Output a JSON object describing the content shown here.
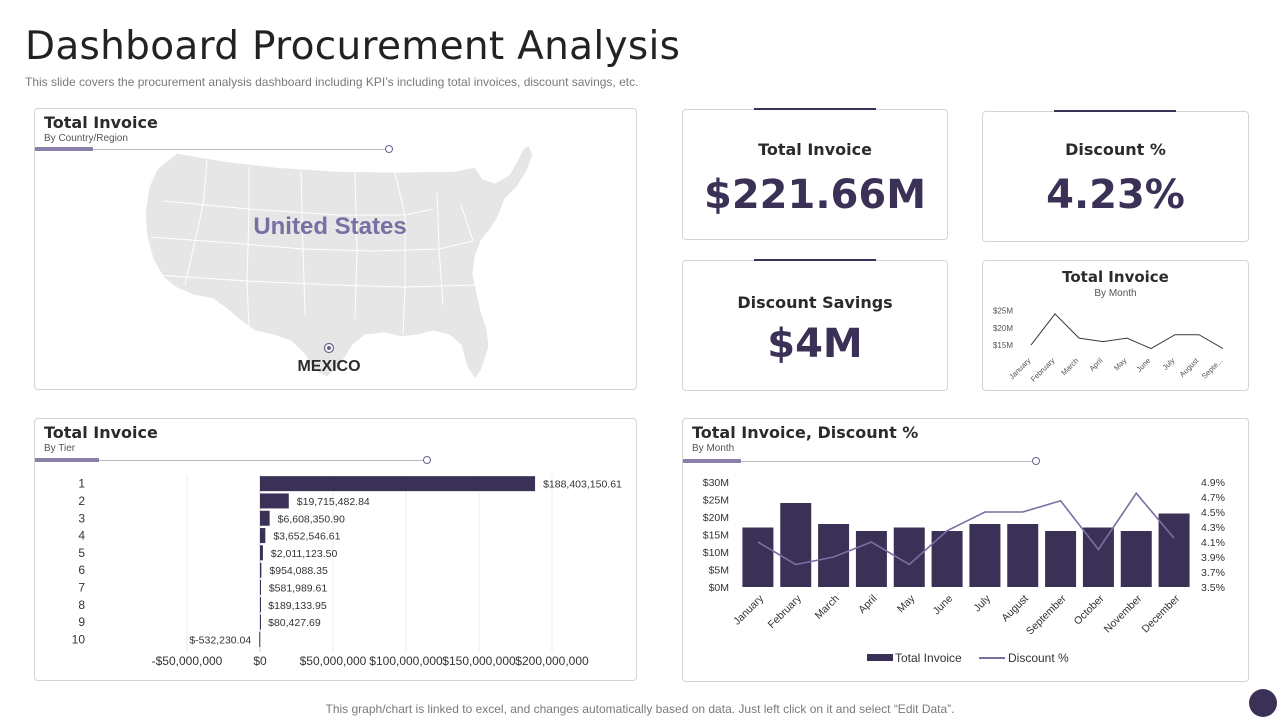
{
  "header": {
    "title": "Dashboard Procurement Analysis",
    "subtitle": "This slide covers the procurement analysis dashboard including KPI’s including total invoices, discount savings, etc."
  },
  "footer": {
    "note": "This graph/chart is linked to excel,  and changes automatically based on data. Just left click on it and select “Edit Data”."
  },
  "colors": {
    "primary": "#3b3156",
    "accent": "#7a6fa3",
    "map_fill": "#e6e6e6",
    "line": "#7a6fa3"
  },
  "map_card": {
    "title": "Total Invoice",
    "subtitle": "By Country/Region",
    "country_label": "United States",
    "marker_label": "MEXICO",
    "marker_icon": "location-pin-icon"
  },
  "kpis": {
    "total_invoice": {
      "label": "Total Invoice",
      "value": "$221.66M"
    },
    "discount_pct": {
      "label": "Discount %",
      "value": "4.23%"
    },
    "discount_savings": {
      "label": "Discount Savings",
      "value": "$4M"
    }
  },
  "chart_data": [
    {
      "id": "invoice-by-tier",
      "type": "bar",
      "orientation": "horizontal",
      "title": "Total Invoice",
      "subtitle": "By Tier",
      "categories": [
        "1",
        "2",
        "3",
        "4",
        "5",
        "6",
        "7",
        "8",
        "9",
        "10"
      ],
      "values": [
        188403150.61,
        19715482.84,
        6608350.9,
        3652546.61,
        2011123.5,
        954088.35,
        581989.61,
        189133.95,
        80427.69,
        -532230.04
      ],
      "value_labels": [
        "$188,403,150.61",
        "$19,715,482.84",
        "$6,608,350.90",
        "$3,652,546.61",
        "$2,011,123.50",
        "$954,088.35",
        "$581,989.61",
        "$189,133.95",
        "$80,427.69",
        "$-532,230.04"
      ],
      "xlim": [
        -50000000,
        200000000
      ],
      "xticks": [
        -50000000,
        0,
        50000000,
        100000000,
        150000000,
        200000000
      ],
      "xtick_labels": [
        "-$50,000,000",
        "$0",
        "$50,000,000",
        "$100,000,000",
        "$150,000,000",
        "$200,000,000"
      ],
      "grid": true
    },
    {
      "id": "invoice-by-month-mini",
      "type": "line",
      "title": "Total Invoice",
      "subtitle": "By Month",
      "categories": [
        "January",
        "February",
        "March",
        "April",
        "May",
        "June",
        "July",
        "August",
        "Septe..."
      ],
      "values": [
        15,
        24,
        17,
        16,
        17,
        14,
        18,
        18,
        14
      ],
      "ylim": [
        13,
        26
      ],
      "yticks": [
        15,
        20,
        25
      ],
      "ytick_labels": [
        "$15M",
        "$20M",
        "$25M"
      ]
    },
    {
      "id": "invoice-discount-by-month",
      "type": "bar",
      "title": "Total Invoice, Discount %",
      "subtitle": "By Month",
      "categories": [
        "January",
        "February",
        "March",
        "April",
        "May",
        "June",
        "July",
        "August",
        "September",
        "October",
        "November",
        "December"
      ],
      "series": [
        {
          "name": "Total Invoice",
          "type": "bar",
          "axis": "left",
          "values": [
            17,
            24,
            18,
            16,
            17,
            16,
            18,
            18,
            16,
            17,
            16,
            21
          ]
        },
        {
          "name": "Discount %",
          "type": "line",
          "axis": "right",
          "values": [
            4.1,
            3.8,
            3.9,
            4.1,
            3.8,
            4.25,
            4.5,
            4.5,
            4.65,
            4.0,
            4.75,
            4.15
          ]
        }
      ],
      "ylim": [
        0,
        30
      ],
      "yticks": [
        0,
        5,
        10,
        15,
        20,
        25,
        30
      ],
      "ytick_labels": [
        "$0M",
        "$5M",
        "$10M",
        "$15M",
        "$20M",
        "$25M",
        "$30M"
      ],
      "y2lim": [
        3.5,
        4.9
      ],
      "y2ticks": [
        3.5,
        3.7,
        3.9,
        4.1,
        4.3,
        4.5,
        4.7,
        4.9
      ],
      "y2tick_labels": [
        "3.5%",
        "3.7%",
        "3.9%",
        "4.1%",
        "4.3%",
        "4.5%",
        "4.7%",
        "4.9%"
      ],
      "legend": "bottom"
    }
  ]
}
